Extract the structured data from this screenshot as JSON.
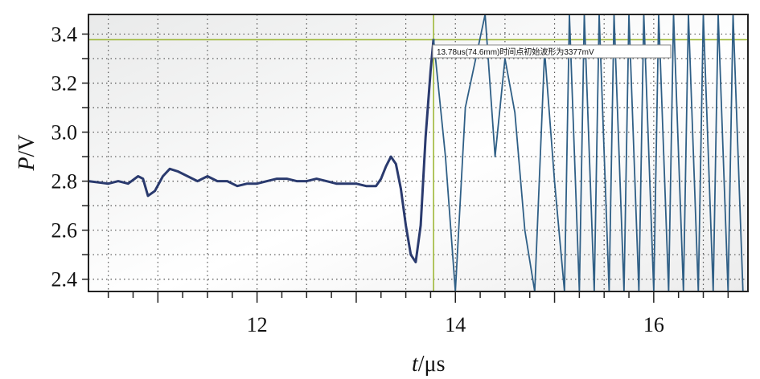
{
  "chart_data": {
    "type": "line",
    "title": "",
    "xlabel_var": "t",
    "xlabel_unit": "/μs",
    "ylabel_var": "P",
    "ylabel_unit": "/V",
    "xlim": [
      10.3,
      16.95
    ],
    "ylim": [
      2.35,
      3.48
    ],
    "xticks": [
      12,
      14,
      16
    ],
    "xtick_labels": [
      "12",
      "14",
      "16"
    ],
    "yticks": [
      2.4,
      2.6,
      2.8,
      3.0,
      3.2,
      3.4
    ],
    "ytick_labels": [
      "2.4",
      "2.6",
      "2.8",
      "3.0",
      "3.2",
      "3.4"
    ],
    "grid": true,
    "colors": {
      "baseline": "#2a3a6e",
      "signal": "#2f5f86",
      "marker": "#9fb83a"
    },
    "marker": {
      "x": 13.78,
      "y": 3.377
    },
    "annotation": "13.78us(74.6mm)时间点初始波形为3377mV",
    "series": [
      {
        "x": [
          10.3,
          10.5,
          10.6,
          10.7,
          10.8,
          10.85,
          10.9,
          10.97,
          11.05,
          11.12,
          11.2,
          11.3,
          11.4,
          11.5,
          11.6,
          11.7,
          11.8,
          11.9,
          12.0,
          12.1,
          12.2,
          12.3,
          12.4,
          12.5,
          12.6,
          12.7,
          12.8,
          12.9,
          13.0,
          13.1,
          13.2,
          13.25,
          13.3,
          13.35,
          13.4,
          13.45,
          13.5,
          13.55,
          13.6,
          13.65,
          13.7,
          13.75,
          13.78
        ],
        "y": [
          2.8,
          2.79,
          2.8,
          2.79,
          2.82,
          2.81,
          2.74,
          2.76,
          2.82,
          2.85,
          2.84,
          2.82,
          2.8,
          2.82,
          2.8,
          2.8,
          2.78,
          2.79,
          2.79,
          2.8,
          2.81,
          2.81,
          2.8,
          2.8,
          2.81,
          2.8,
          2.79,
          2.79,
          2.79,
          2.78,
          2.78,
          2.81,
          2.86,
          2.9,
          2.87,
          2.77,
          2.62,
          2.5,
          2.47,
          2.62,
          2.98,
          3.25,
          3.38
        ]
      },
      {
        "x": [
          13.78,
          13.9,
          14.0,
          14.1,
          14.3,
          14.4,
          14.5,
          14.6,
          14.7,
          14.8,
          14.9,
          15.0,
          15.1,
          15.15,
          15.25,
          15.3,
          15.4,
          15.45,
          15.55,
          15.6,
          15.7,
          15.75,
          15.85,
          15.9,
          16.0,
          16.05,
          16.15,
          16.2,
          16.3,
          16.35,
          16.45,
          16.5,
          16.6,
          16.65,
          16.75,
          16.8,
          16.9
        ],
        "y": [
          3.38,
          2.9,
          2.35,
          3.1,
          3.48,
          2.9,
          3.3,
          3.08,
          2.6,
          2.35,
          3.33,
          2.8,
          2.35,
          3.48,
          2.35,
          3.48,
          2.35,
          3.48,
          2.35,
          3.48,
          2.35,
          3.48,
          2.35,
          3.48,
          2.35,
          3.48,
          2.35,
          3.48,
          2.35,
          3.48,
          2.35,
          3.48,
          2.35,
          3.48,
          2.35,
          3.48,
          2.35
        ]
      }
    ]
  }
}
